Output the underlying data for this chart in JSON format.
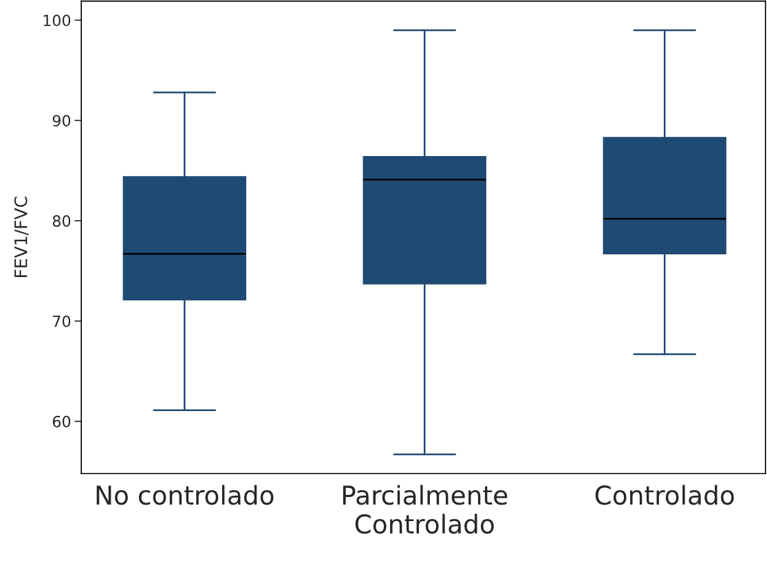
{
  "chart_data": {
    "type": "box",
    "ylabel": "FEV1/FVC",
    "categories": [
      "No controlado",
      "Parcialmente\nControlado",
      "Controlado"
    ],
    "color": "#1f4a73",
    "boxes": [
      {
        "low": 61.1,
        "q1": 72.1,
        "median": 76.7,
        "q3": 84.4,
        "high": 92.8
      },
      {
        "low": 56.7,
        "q1": 73.7,
        "median": 84.1,
        "q3": 86.4,
        "high": 99.0
      },
      {
        "low": 66.7,
        "q1": 76.7,
        "median": 80.2,
        "q3": 88.3,
        "high": 99.0
      }
    ],
    "ylim": [
      54.8,
      101.9
    ],
    "yticks": [
      60,
      70,
      80,
      90,
      100
    ],
    "grid": false
  }
}
